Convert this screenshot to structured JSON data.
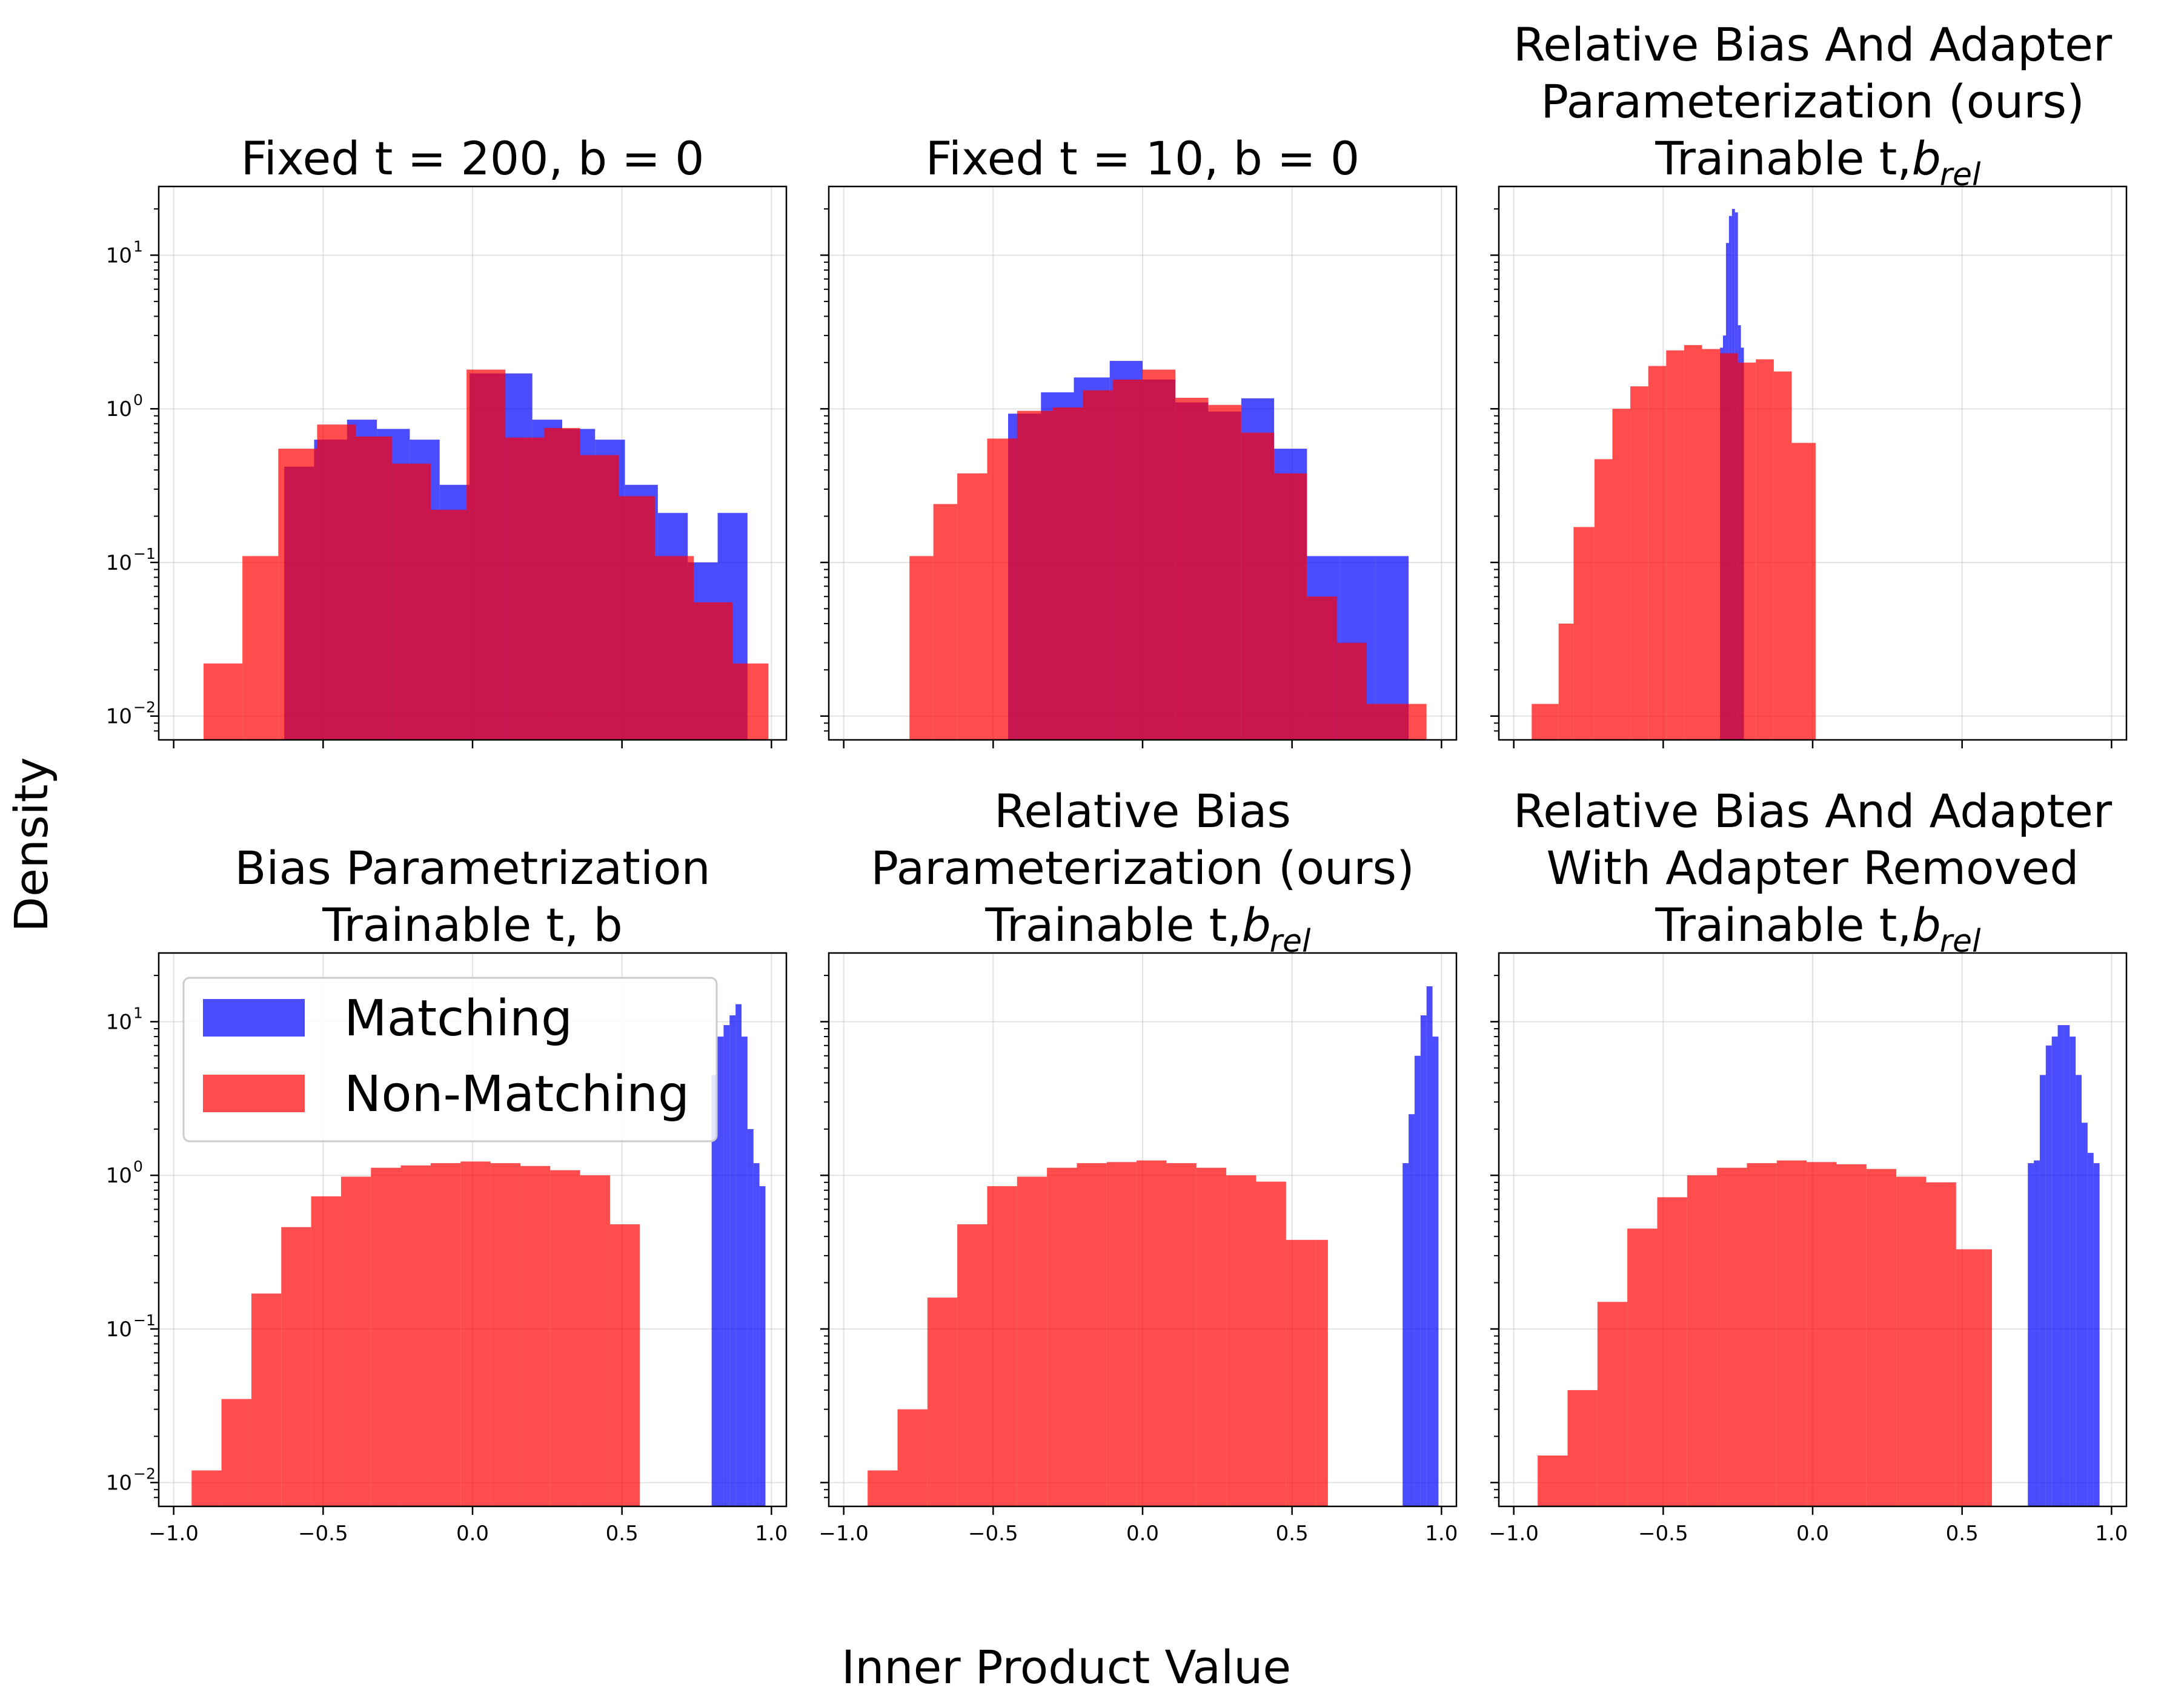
{
  "figure": {
    "ylabel": "Density",
    "xlabel": "Inner Product Value",
    "legend": {
      "placement": "upper-left of panel 4",
      "items": [
        {
          "label": "Matching",
          "color": "#0000ff",
          "alpha": 0.7
        },
        {
          "label": "Non-Matching",
          "color": "#ff0000",
          "alpha": 0.7
        }
      ]
    }
  },
  "chart_data": [
    {
      "type": "bar",
      "title_lines": [
        "Fixed t = 200, b = 0"
      ],
      "title_sub": "",
      "yscale": "log",
      "ylim": [
        0.007,
        28
      ],
      "xlim": [
        -1.05,
        1.05
      ],
      "grid": true,
      "x_tick_labels": [
        "",
        "",
        "",
        "",
        ""
      ],
      "y_tick_labels": [
        "10",
        "10",
        "10",
        "10"
      ],
      "y_tick_exponents": [
        "1",
        "0",
        "−1",
        "−2"
      ],
      "series": [
        {
          "name": "Matching",
          "color": "#0000ff",
          "bins": [
            [
              -0.63,
              -0.53,
              0.42
            ],
            [
              -0.53,
              -0.42,
              0.63
            ],
            [
              -0.42,
              -0.32,
              0.85
            ],
            [
              -0.32,
              -0.21,
              0.74
            ],
            [
              -0.21,
              -0.11,
              0.63
            ],
            [
              -0.11,
              -0.01,
              0.32
            ],
            [
              -0.01,
              0.1,
              1.7
            ],
            [
              0.1,
              0.2,
              1.7
            ],
            [
              0.2,
              0.3,
              0.85
            ],
            [
              0.3,
              0.41,
              0.74
            ],
            [
              0.41,
              0.51,
              0.63
            ],
            [
              0.51,
              0.62,
              0.32
            ],
            [
              0.62,
              0.72,
              0.21
            ],
            [
              0.72,
              0.82,
              0.1
            ],
            [
              0.82,
              0.92,
              0.21
            ]
          ]
        },
        {
          "name": "Non-Matching",
          "color": "#ff0000",
          "bins": [
            [
              -0.9,
              -0.77,
              0.022
            ],
            [
              -0.77,
              -0.65,
              0.11
            ],
            [
              -0.65,
              -0.52,
              0.55
            ],
            [
              -0.52,
              -0.39,
              0.79
            ],
            [
              -0.39,
              -0.27,
              0.66
            ],
            [
              -0.27,
              -0.14,
              0.44
            ],
            [
              -0.14,
              -0.02,
              0.22
            ],
            [
              -0.02,
              0.11,
              1.8
            ],
            [
              0.11,
              0.24,
              0.65
            ],
            [
              0.24,
              0.36,
              0.75
            ],
            [
              0.36,
              0.49,
              0.5
            ],
            [
              0.49,
              0.61,
              0.27
            ],
            [
              0.61,
              0.74,
              0.11
            ],
            [
              0.74,
              0.87,
              0.055
            ],
            [
              0.87,
              0.99,
              0.022
            ]
          ]
        }
      ]
    },
    {
      "type": "bar",
      "title_lines": [
        "Fixed t = 10, b = 0"
      ],
      "title_sub": "",
      "yscale": "log",
      "ylim": [
        0.007,
        28
      ],
      "xlim": [
        -1.05,
        1.05
      ],
      "grid": true,
      "x_tick_labels": [
        "",
        "",
        "",
        "",
        ""
      ],
      "y_tick_labels": [
        "",
        "",
        "",
        ""
      ],
      "y_tick_exponents": [
        "",
        "",
        "",
        ""
      ],
      "series": [
        {
          "name": "Matching",
          "color": "#0000ff",
          "bins": [
            [
              -0.45,
              -0.34,
              0.93
            ],
            [
              -0.34,
              -0.23,
              1.28
            ],
            [
              -0.23,
              -0.11,
              1.6
            ],
            [
              -0.11,
              0.0,
              2.05
            ],
            [
              0.0,
              0.11,
              1.55
            ],
            [
              0.11,
              0.22,
              1.1
            ],
            [
              0.22,
              0.33,
              0.96
            ],
            [
              0.33,
              0.44,
              1.17
            ],
            [
              0.44,
              0.55,
              0.55
            ],
            [
              0.55,
              0.66,
              0.11
            ],
            [
              0.66,
              0.78,
              0.11
            ],
            [
              0.78,
              0.89,
              0.11
            ]
          ]
        },
        {
          "name": "Non-Matching",
          "color": "#ff0000",
          "bins": [
            [
              -0.78,
              -0.7,
              0.11
            ],
            [
              -0.7,
              -0.62,
              0.24
            ],
            [
              -0.62,
              -0.52,
              0.38
            ],
            [
              -0.52,
              -0.42,
              0.64
            ],
            [
              -0.42,
              -0.3,
              0.97
            ],
            [
              -0.3,
              -0.2,
              1.02
            ],
            [
              -0.2,
              -0.1,
              1.32
            ],
            [
              -0.1,
              0.0,
              1.55
            ],
            [
              0.0,
              0.11,
              1.8
            ],
            [
              0.11,
              0.22,
              1.18
            ],
            [
              0.22,
              0.33,
              1.06
            ],
            [
              0.33,
              0.44,
              0.7
            ],
            [
              0.44,
              0.55,
              0.38
            ],
            [
              0.55,
              0.65,
              0.06
            ],
            [
              0.65,
              0.75,
              0.03
            ],
            [
              0.75,
              0.85,
              0.012
            ],
            [
              0.85,
              0.95,
              0.012
            ]
          ]
        }
      ]
    },
    {
      "type": "bar",
      "title_lines": [
        "Relative Bias And Adapter",
        "Parameterization (ours)",
        "Trainable t, "
      ],
      "title_sub": "b_rel",
      "yscale": "log",
      "ylim": [
        0.007,
        28
      ],
      "xlim": [
        -1.05,
        1.05
      ],
      "grid": true,
      "x_tick_labels": [
        "",
        "",
        "",
        "",
        ""
      ],
      "y_tick_labels": [
        "",
        "",
        "",
        ""
      ],
      "y_tick_exponents": [
        "",
        "",
        "",
        ""
      ],
      "series": [
        {
          "name": "Matching",
          "color": "#0000ff",
          "bins": [
            [
              -0.31,
              -0.3,
              2.5
            ],
            [
              -0.3,
              -0.29,
              3.0
            ],
            [
              -0.29,
              -0.28,
              12.0
            ],
            [
              -0.28,
              -0.27,
              18.0
            ],
            [
              -0.27,
              -0.26,
              20.0
            ],
            [
              -0.26,
              -0.25,
              19.0
            ],
            [
              -0.25,
              -0.24,
              3.5
            ],
            [
              -0.24,
              -0.23,
              2.5
            ]
          ]
        },
        {
          "name": "Non-Matching",
          "color": "#ff0000",
          "bins": [
            [
              -0.94,
              -0.85,
              0.012
            ],
            [
              -0.85,
              -0.8,
              0.04
            ],
            [
              -0.8,
              -0.73,
              0.17
            ],
            [
              -0.73,
              -0.67,
              0.47
            ],
            [
              -0.67,
              -0.61,
              1.0
            ],
            [
              -0.61,
              -0.55,
              1.4
            ],
            [
              -0.55,
              -0.49,
              1.9
            ],
            [
              -0.49,
              -0.43,
              2.4
            ],
            [
              -0.43,
              -0.37,
              2.6
            ],
            [
              -0.37,
              -0.31,
              2.45
            ],
            [
              -0.31,
              -0.25,
              2.3
            ],
            [
              -0.25,
              -0.19,
              2.0
            ],
            [
              -0.19,
              -0.13,
              2.1
            ],
            [
              -0.13,
              -0.07,
              1.75
            ],
            [
              -0.07,
              0.01,
              0.6
            ]
          ]
        }
      ]
    },
    {
      "type": "bar",
      "title_lines": [
        "Bias Parametrization",
        "Trainable t, b"
      ],
      "title_sub": "",
      "yscale": "log",
      "ylim": [
        0.007,
        28
      ],
      "xlim": [
        -1.05,
        1.05
      ],
      "grid": true,
      "x_tick_labels": [
        "−1.0",
        "−0.5",
        "0.0",
        "0.5",
        "1.0"
      ],
      "y_tick_labels": [
        "10",
        "10",
        "10",
        "10"
      ],
      "y_tick_exponents": [
        "1",
        "0",
        "−1",
        "−2"
      ],
      "series": [
        {
          "name": "Matching",
          "color": "#0000ff",
          "bins": [
            [
              0.8,
              0.82,
              4.5
            ],
            [
              0.82,
              0.84,
              8.0
            ],
            [
              0.84,
              0.86,
              9.5
            ],
            [
              0.86,
              0.88,
              11.0
            ],
            [
              0.88,
              0.9,
              13.0
            ],
            [
              0.9,
              0.92,
              8.0
            ],
            [
              0.92,
              0.94,
              2.0
            ],
            [
              0.94,
              0.96,
              1.2
            ],
            [
              0.96,
              0.98,
              0.85
            ]
          ]
        },
        {
          "name": "Non-Matching",
          "color": "#ff0000",
          "bins": [
            [
              -0.94,
              -0.84,
              0.012
            ],
            [
              -0.84,
              -0.74,
              0.035
            ],
            [
              -0.74,
              -0.64,
              0.17
            ],
            [
              -0.64,
              -0.54,
              0.46
            ],
            [
              -0.54,
              -0.44,
              0.73
            ],
            [
              -0.44,
              -0.34,
              0.98
            ],
            [
              -0.34,
              -0.24,
              1.12
            ],
            [
              -0.24,
              -0.14,
              1.16
            ],
            [
              -0.14,
              -0.04,
              1.2
            ],
            [
              -0.04,
              0.06,
              1.23
            ],
            [
              0.06,
              0.16,
              1.2
            ],
            [
              0.16,
              0.26,
              1.15
            ],
            [
              0.26,
              0.36,
              1.08
            ],
            [
              0.36,
              0.46,
              1.0
            ],
            [
              0.46,
              0.56,
              0.48
            ]
          ]
        }
      ]
    },
    {
      "type": "bar",
      "title_lines": [
        "Relative Bias",
        "Parameterization (ours)",
        "Trainable t, "
      ],
      "title_sub": "b_rel",
      "yscale": "log",
      "ylim": [
        0.007,
        28
      ],
      "xlim": [
        -1.05,
        1.05
      ],
      "grid": true,
      "x_tick_labels": [
        "−1.0",
        "−0.5",
        "0.0",
        "0.5",
        "1.0"
      ],
      "y_tick_labels": [
        "",
        "",
        "",
        ""
      ],
      "y_tick_exponents": [
        "",
        "",
        "",
        ""
      ],
      "series": [
        {
          "name": "Matching",
          "color": "#0000ff",
          "bins": [
            [
              0.87,
              0.89,
              1.2
            ],
            [
              0.89,
              0.91,
              2.5
            ],
            [
              0.91,
              0.93,
              6.0
            ],
            [
              0.93,
              0.95,
              11.0
            ],
            [
              0.95,
              0.97,
              17.0
            ],
            [
              0.97,
              0.99,
              8.0
            ]
          ]
        },
        {
          "name": "Non-Matching",
          "color": "#ff0000",
          "bins": [
            [
              -0.92,
              -0.82,
              0.012
            ],
            [
              -0.82,
              -0.72,
              0.03
            ],
            [
              -0.72,
              -0.62,
              0.16
            ],
            [
              -0.62,
              -0.52,
              0.48
            ],
            [
              -0.52,
              -0.42,
              0.85
            ],
            [
              -0.42,
              -0.32,
              0.98
            ],
            [
              -0.32,
              -0.22,
              1.12
            ],
            [
              -0.22,
              -0.12,
              1.2
            ],
            [
              -0.12,
              -0.02,
              1.22
            ],
            [
              -0.02,
              0.08,
              1.25
            ],
            [
              0.08,
              0.18,
              1.2
            ],
            [
              0.18,
              0.28,
              1.12
            ],
            [
              0.28,
              0.38,
              1.0
            ],
            [
              0.38,
              0.48,
              0.91
            ],
            [
              0.48,
              0.58,
              0.38
            ],
            [
              0.58,
              0.62,
              0.38
            ]
          ]
        }
      ]
    },
    {
      "type": "bar",
      "title_lines": [
        "Relative Bias And Adapter",
        "With Adapter Removed",
        "Trainable t, "
      ],
      "title_sub": "b_rel",
      "yscale": "log",
      "ylim": [
        0.007,
        28
      ],
      "xlim": [
        -1.05,
        1.05
      ],
      "grid": true,
      "x_tick_labels": [
        "−1.0",
        "−0.5",
        "0.0",
        "0.5",
        "1.0"
      ],
      "y_tick_labels": [
        "",
        "",
        "",
        ""
      ],
      "y_tick_exponents": [
        "",
        "",
        "",
        ""
      ],
      "series": [
        {
          "name": "Matching",
          "color": "#0000ff",
          "bins": [
            [
              0.72,
              0.74,
              1.2
            ],
            [
              0.74,
              0.76,
              1.25
            ],
            [
              0.76,
              0.78,
              4.5
            ],
            [
              0.78,
              0.8,
              7.0
            ],
            [
              0.8,
              0.82,
              8.0
            ],
            [
              0.82,
              0.84,
              9.5
            ],
            [
              0.84,
              0.86,
              9.5
            ],
            [
              0.86,
              0.88,
              8.0
            ],
            [
              0.88,
              0.9,
              4.5
            ],
            [
              0.9,
              0.92,
              2.2
            ],
            [
              0.92,
              0.94,
              1.4
            ],
            [
              0.94,
              0.96,
              1.2
            ]
          ]
        },
        {
          "name": "Non-Matching",
          "color": "#ff0000",
          "bins": [
            [
              -0.92,
              -0.82,
              0.015
            ],
            [
              -0.82,
              -0.72,
              0.04
            ],
            [
              -0.72,
              -0.62,
              0.15
            ],
            [
              -0.62,
              -0.52,
              0.45
            ],
            [
              -0.52,
              -0.42,
              0.72
            ],
            [
              -0.42,
              -0.32,
              1.0
            ],
            [
              -0.32,
              -0.22,
              1.12
            ],
            [
              -0.22,
              -0.12,
              1.2
            ],
            [
              -0.12,
              -0.02,
              1.25
            ],
            [
              -0.02,
              0.08,
              1.22
            ],
            [
              0.08,
              0.18,
              1.18
            ],
            [
              0.18,
              0.28,
              1.1
            ],
            [
              0.28,
              0.38,
              0.98
            ],
            [
              0.38,
              0.48,
              0.9
            ],
            [
              0.48,
              0.58,
              0.33
            ],
            [
              0.58,
              0.6,
              0.33
            ]
          ]
        }
      ]
    }
  ]
}
